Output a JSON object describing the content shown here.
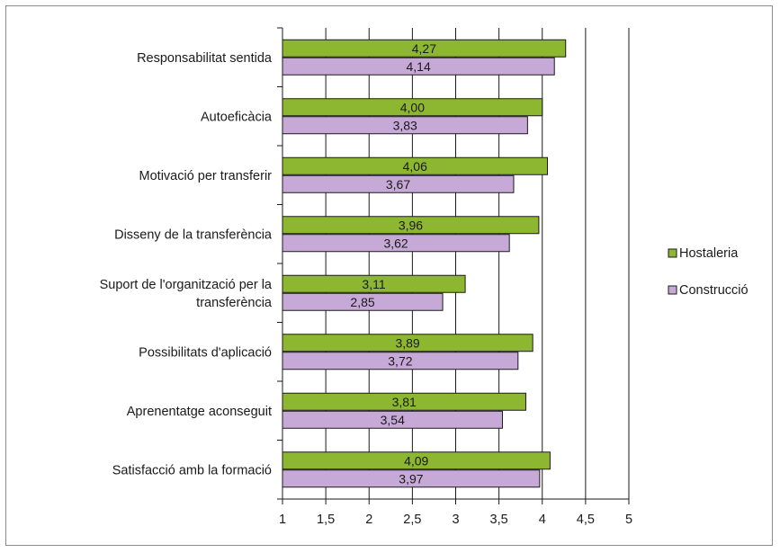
{
  "chart_data": {
    "type": "bar",
    "orientation": "horizontal",
    "categories": [
      [
        "Responsabilitat sentida"
      ],
      [
        "Autoeficàcia "
      ],
      [
        "Motivació per transferir "
      ],
      [
        "Disseny de la transferència"
      ],
      [
        "Suport de l'organització per la",
        "transferència"
      ],
      [
        "Possibilitats d'aplicació"
      ],
      [
        "Aprenentatge aconseguit"
      ],
      [
        "Satisfacció amb la formació"
      ]
    ],
    "series": [
      {
        "name": "Hostaleria",
        "color": "#8db631",
        "values": [
          4.27,
          4.0,
          4.06,
          3.96,
          3.11,
          3.89,
          3.81,
          4.09
        ],
        "labels": [
          "4,27",
          "4,00",
          "4,06",
          "3,96",
          "3,11",
          "3,89",
          "3,81",
          "4,09"
        ]
      },
      {
        "name": "Construcció",
        "color": "#c6a9d6",
        "values": [
          4.14,
          3.83,
          3.67,
          3.62,
          2.85,
          3.72,
          3.54,
          3.97
        ],
        "labels": [
          "4,14",
          "3,83",
          "3,67",
          "3,62",
          "2,85",
          "3,72",
          "3,54",
          "3,97"
        ]
      }
    ],
    "xlim": [
      1,
      5
    ],
    "xticks": [
      1,
      1.5,
      2,
      2.5,
      3,
      3.5,
      4,
      4.5,
      5
    ],
    "xtick_labels": [
      "1",
      "1,5",
      "2",
      "2,5",
      "3",
      "3,5",
      "4",
      "4,5",
      "5"
    ],
    "grid": "vertical",
    "legend_position": "right"
  }
}
